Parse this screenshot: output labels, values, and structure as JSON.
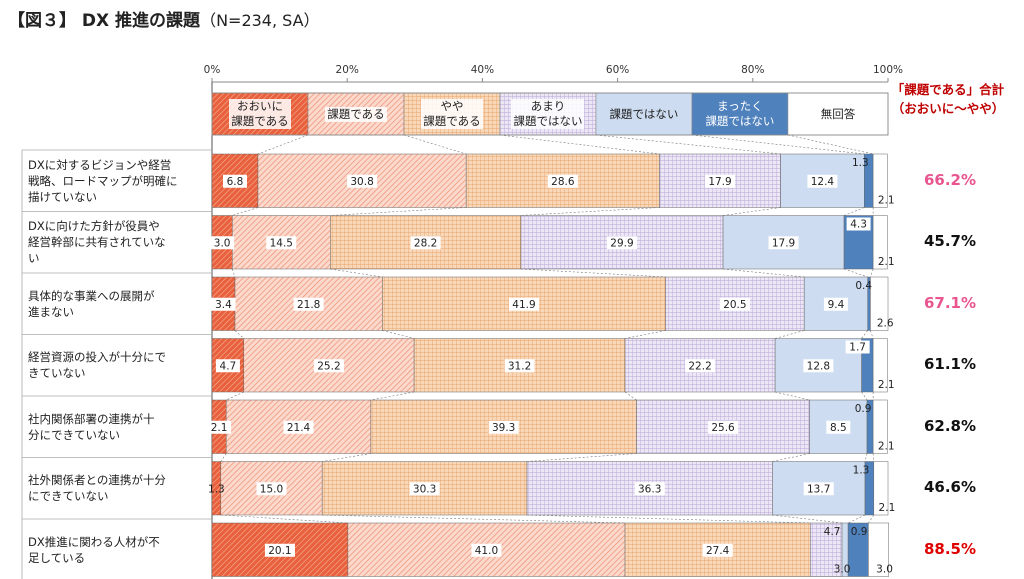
{
  "title": {
    "main": "【図３】 DX 推進の課題",
    "sub": "（N=234, SA）"
  },
  "total_header": {
    "line1": "「課題である」合計",
    "line2": "（おおいに～やや）"
  },
  "chart_data": {
    "type": "bar",
    "orientation": "horizontal",
    "stacked": "100%",
    "xlim": [
      0,
      100
    ],
    "xticks": [
      "0%",
      "20%",
      "40%",
      "60%",
      "80%",
      "100%"
    ],
    "legend": [
      {
        "name": "おおいに課題である",
        "lines": [
          "おおいに",
          "課題である"
        ],
        "color": "#e8603c",
        "pattern": "hatch-dense"
      },
      {
        "name": "課題である",
        "lines": [
          "課題である"
        ],
        "color": "#f4b6a0",
        "pattern": "hatch-light"
      },
      {
        "name": "やや課題である",
        "lines": [
          "やや",
          "課題である"
        ],
        "color": "#f6c9a2",
        "pattern": "grid-orange"
      },
      {
        "name": "あまり課題ではない",
        "lines": [
          "あまり",
          "課題ではない"
        ],
        "color": "#dcd2ee",
        "pattern": "grid-purple"
      },
      {
        "name": "課題ではない",
        "lines": [
          "課題ではない"
        ],
        "color": "#cddcf0",
        "pattern": "solid"
      },
      {
        "name": "まったく課題ではない",
        "lines": [
          "まったく",
          "課題ではない"
        ],
        "color": "#4f81bd",
        "pattern": "solid"
      },
      {
        "name": "無回答",
        "lines": [
          "無回答"
        ],
        "color": "#ffffff",
        "pattern": "solid"
      }
    ],
    "categories": [
      "DXに対するビジョンや経営戦略、ロードマップが明確に描けていない",
      "DXに向けた方針が役員や経営幹部に共有されていない",
      "具体的な事業への展開が進まない",
      "経営資源の投入が十分にできていない",
      "社内関係部署の連携が十分にできていない",
      "社外関係者との連携が十分にできていない",
      "DX推進に関わる人材が不足している"
    ],
    "category_lines": [
      [
        "DXに対するビジョンや経営",
        "戦略、ロードマップが明確に",
        "描けていない"
      ],
      [
        "DXに向けた方針が役員や",
        "経営幹部に共有されていな",
        "い"
      ],
      [
        "具体的な事業への展開が",
        "進まない"
      ],
      [
        "経営資源の投入が十分にで",
        "きていない"
      ],
      [
        "社内関係部署の連携が十",
        "分にできていない"
      ],
      [
        "社外関係者との連携が十分",
        "にできていない"
      ],
      [
        "DX推進に関わる人材が不",
        "足している"
      ]
    ],
    "series": [
      {
        "name": "おおいに課題である",
        "values": [
          6.8,
          3.0,
          3.4,
          4.7,
          2.1,
          1.3,
          20.1
        ]
      },
      {
        "name": "課題である",
        "values": [
          30.8,
          14.5,
          21.8,
          25.2,
          21.4,
          15.0,
          41.0
        ]
      },
      {
        "name": "やや課題である",
        "values": [
          28.6,
          28.2,
          41.9,
          31.2,
          39.3,
          30.3,
          27.4
        ]
      },
      {
        "name": "あまり課題ではない",
        "values": [
          17.9,
          29.9,
          20.5,
          22.2,
          25.6,
          36.3,
          4.7
        ]
      },
      {
        "name": "課題ではない",
        "values": [
          12.4,
          17.9,
          9.4,
          12.8,
          8.5,
          13.7,
          0.9
        ]
      },
      {
        "name": "まったく課題ではない",
        "values": [
          1.3,
          4.3,
          0.4,
          1.7,
          0.9,
          1.3,
          3.0
        ]
      },
      {
        "name": "無回答",
        "values": [
          2.1,
          2.1,
          2.6,
          2.1,
          2.1,
          2.1,
          3.0
        ]
      }
    ],
    "data_labels": [
      [
        "6.8",
        "30.8",
        "28.6",
        "17.9",
        "12.4",
        "1.3",
        "2.1"
      ],
      [
        "3.0",
        "14.5",
        "28.2",
        "29.9",
        "17.9",
        "4.3",
        "2.1"
      ],
      [
        "3.4",
        "21.8",
        "41.9",
        "20.5",
        "9.4",
        "0.4",
        "2.6"
      ],
      [
        "4.7",
        "25.2",
        "31.2",
        "22.2",
        "12.8",
        "1.7",
        "2.1"
      ],
      [
        "2.1",
        "21.4",
        "39.3",
        "25.6",
        "8.5",
        "0.9",
        "2.1"
      ],
      [
        "1.3",
        "15.0",
        "30.3",
        "36.3",
        "13.7",
        "1.3",
        "2.1"
      ],
      [
        "20.1",
        "41.0",
        "27.4",
        "4.7",
        "0.9",
        "3.0",
        "3.0"
      ]
    ],
    "totals": [
      "66.2%",
      "45.7%",
      "67.1%",
      "61.1%",
      "62.8%",
      "46.6%",
      "88.5%"
    ],
    "total_colors": [
      "#e8558f",
      "#111111",
      "#e8558f",
      "#111111",
      "#111111",
      "#111111",
      "#e00000"
    ]
  }
}
